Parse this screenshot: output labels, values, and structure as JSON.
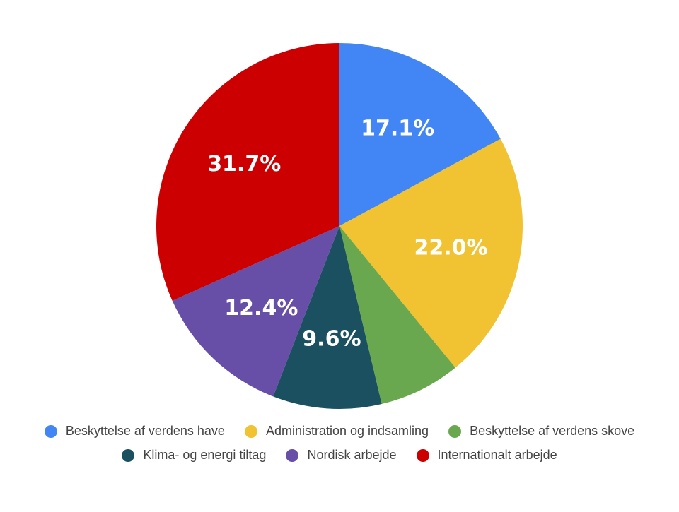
{
  "chart_data": {
    "type": "pie",
    "title": "",
    "start_angle_deg": 0,
    "direction": "clockwise",
    "slices": [
      {
        "label": "Beskyttelse af verdens have",
        "value": 17.1,
        "display": "17.1%",
        "color": "#4285f4"
      },
      {
        "label": "Administration og indsamling",
        "value": 22.0,
        "display": "22.0%",
        "color": "#f1c232"
      },
      {
        "label": "Beskyttelse af verdens skove",
        "value": 7.2,
        "display": "",
        "color": "#6aa84f"
      },
      {
        "label": "Klima- og energi tiltag",
        "value": 9.6,
        "display": "9.6%",
        "color": "#1a5060"
      },
      {
        "label": "Nordisk arbejde",
        "value": 12.4,
        "display": "12.4%",
        "color": "#674ea7"
      },
      {
        "label": "Internationalt arbejde",
        "value": 31.7,
        "display": "31.7%",
        "color": "#cc0000"
      }
    ],
    "legend": {
      "placement": "bottom",
      "rows": [
        [
          0,
          1,
          2
        ],
        [
          3,
          4,
          5
        ]
      ]
    }
  }
}
